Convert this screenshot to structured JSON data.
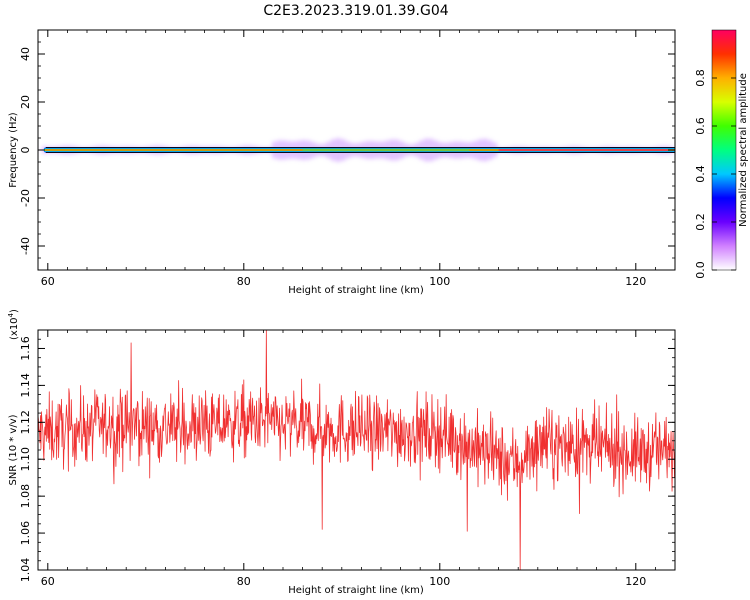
{
  "figure": {
    "title": "C2E3.2023.319.01.39.G04"
  },
  "chart_data": [
    {
      "type": "heatmap",
      "panel": "spectrogram",
      "xlabel": "Height of straight line (km)",
      "ylabel": "Frequency (Hz)",
      "xlim": [
        59,
        124
      ],
      "ylim": [
        -50,
        50
      ],
      "x_ticks": [
        60,
        80,
        100,
        120
      ],
      "y_ticks": [
        -40,
        -20,
        0,
        20,
        40
      ],
      "colorbar": {
        "label": "Normalized spectral amplitude",
        "range": [
          0,
          1
        ],
        "ticks": [
          "0.0",
          "0.2",
          "0.4",
          "0.6",
          "0.8"
        ],
        "colors": [
          "#ffffff",
          "#d080ff",
          "#6a00ff",
          "#0000ff",
          "#00c8ff",
          "#00ff80",
          "#40ff00",
          "#d8ff00",
          "#ffb000",
          "#ff3000",
          "#ff0060"
        ]
      },
      "signal": {
        "center_frequency_hz": 0,
        "band_segments": [
          {
            "x_start": 59,
            "x_end": 83,
            "halfwidth_hz": 1.5
          },
          {
            "x_start": 83,
            "x_end": 106,
            "halfwidth_hz": 4.5
          },
          {
            "x_start": 106,
            "x_end": 124,
            "halfwidth_hz": 1.2
          }
        ]
      }
    },
    {
      "type": "line",
      "panel": "snr",
      "xlabel": "Height of straight line (km)",
      "ylabel": "SNR (10 * v/v)",
      "y_multiplier": "(x10",
      "y_multiplier_exp": "4",
      "xlim": [
        59,
        124
      ],
      "ylim": [
        1.04,
        1.17
      ],
      "x_ticks": [
        60,
        80,
        100,
        120
      ],
      "y_ticks": [
        "1.04",
        "1.06",
        "1.08",
        "1.10",
        "1.12",
        "1.14",
        "1.16"
      ],
      "color": "#f03030",
      "mean_profile": [
        {
          "x": 59,
          "y": 1.114
        },
        {
          "x": 65,
          "y": 1.118
        },
        {
          "x": 70,
          "y": 1.118
        },
        {
          "x": 75,
          "y": 1.117
        },
        {
          "x": 80,
          "y": 1.12
        },
        {
          "x": 85,
          "y": 1.118
        },
        {
          "x": 90,
          "y": 1.116
        },
        {
          "x": 95,
          "y": 1.115
        },
        {
          "x": 100,
          "y": 1.115
        },
        {
          "x": 103,
          "y": 1.108
        },
        {
          "x": 106,
          "y": 1.1
        },
        {
          "x": 108,
          "y": 1.098
        },
        {
          "x": 110,
          "y": 1.108
        },
        {
          "x": 115,
          "y": 1.107
        },
        {
          "x": 120,
          "y": 1.103
        },
        {
          "x": 124,
          "y": 1.106
        }
      ],
      "notable_points": [
        {
          "x": 82.3,
          "y": 1.17
        },
        {
          "x": 68.5,
          "y": 1.163
        },
        {
          "x": 108.2,
          "y": 1.04
        },
        {
          "x": 102.8,
          "y": 1.061
        },
        {
          "x": 88.0,
          "y": 1.062
        }
      ]
    }
  ]
}
